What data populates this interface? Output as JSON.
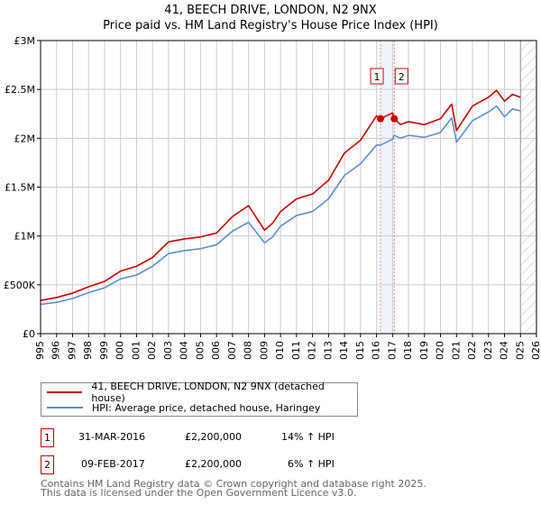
{
  "chart_data": {
    "type": "line",
    "title": "41, BEECH DRIVE, LONDON, N2 9NX",
    "subtitle": "Price paid vs. HM Land Registry's House Price Index (HPI)",
    "xlim": [
      1995,
      2026
    ],
    "ylim": [
      0,
      3000000
    ],
    "x_ticks": [
      "1995",
      "1996",
      "1997",
      "1998",
      "1999",
      "2000",
      "2001",
      "2002",
      "2003",
      "2004",
      "2005",
      "2006",
      "2007",
      "2008",
      "2009",
      "2010",
      "2011",
      "2012",
      "2013",
      "2014",
      "2015",
      "2016",
      "2017",
      "2018",
      "2019",
      "2020",
      "2021",
      "2022",
      "2023",
      "2024",
      "2025",
      "2026"
    ],
    "y_ticks": [
      {
        "v": 0,
        "label": "£0"
      },
      {
        "v": 500000,
        "label": "£500K"
      },
      {
        "v": 1000000,
        "label": "£1M"
      },
      {
        "v": 1500000,
        "label": "£1.5M"
      },
      {
        "v": 2000000,
        "label": "£2M"
      },
      {
        "v": 2500000,
        "label": "£2.5M"
      },
      {
        "v": 3000000,
        "label": "£3M"
      }
    ],
    "grid": true,
    "series": [
      {
        "name": "41, BEECH DRIVE, LONDON, N2 9NX (detached house)",
        "color": "#cc0000",
        "x": [
          1995,
          1996,
          1997,
          1998,
          1999,
          2000,
          2001,
          2002,
          2003,
          2004,
          2005,
          2006,
          2007,
          2008,
          2009,
          2009.5,
          2010,
          2011,
          2012,
          2013,
          2014,
          2015,
          2016,
          2016.25,
          2017,
          2017.1,
          2017.5,
          2018,
          2019,
          2020,
          2020.7,
          2021,
          2022,
          2023,
          2023.5,
          2024,
          2024.5,
          2025
        ],
        "y": [
          340000,
          370000,
          415000,
          480000,
          535000,
          640000,
          690000,
          780000,
          940000,
          970000,
          990000,
          1030000,
          1200000,
          1310000,
          1060000,
          1130000,
          1250000,
          1380000,
          1430000,
          1570000,
          1850000,
          1980000,
          2230000,
          2200000,
          2260000,
          2200000,
          2140000,
          2170000,
          2140000,
          2200000,
          2350000,
          2080000,
          2330000,
          2420000,
          2490000,
          2380000,
          2450000,
          2420000
        ]
      },
      {
        "name": "HPI: Average price, detached house, Haringey",
        "color": "#5b8fd0",
        "x": [
          1995,
          1996,
          1997,
          1998,
          1999,
          2000,
          2001,
          2002,
          2003,
          2004,
          2005,
          2006,
          2007,
          2008,
          2009,
          2009.5,
          2010,
          2011,
          2012,
          2013,
          2014,
          2015,
          2016,
          2016.25,
          2017,
          2017.1,
          2017.5,
          2018,
          2019,
          2020,
          2020.7,
          2021,
          2022,
          2023,
          2023.5,
          2024,
          2024.5,
          2025
        ],
        "y": [
          300000,
          320000,
          360000,
          420000,
          470000,
          560000,
          600000,
          690000,
          820000,
          850000,
          870000,
          910000,
          1050000,
          1140000,
          930000,
          990000,
          1100000,
          1210000,
          1250000,
          1380000,
          1620000,
          1740000,
          1930000,
          1930000,
          1990000,
          2030000,
          2000000,
          2030000,
          2010000,
          2060000,
          2210000,
          1960000,
          2180000,
          2270000,
          2330000,
          2220000,
          2300000,
          2280000
        ]
      }
    ],
    "sales": [
      {
        "label": "1",
        "x": 2016.25,
        "date": "31-MAR-2016",
        "price": "£2,200,000",
        "value": 2200000,
        "hpi": "14% ↑ HPI"
      },
      {
        "label": "2",
        "x": 2017.11,
        "date": "09-FEB-2017",
        "price": "£2,200,000",
        "value": 2200000,
        "hpi": "6% ↑ HPI"
      }
    ],
    "shaded_range": [
      2016.25,
      2017.11
    ],
    "forecast_hatch_from": 2025.0
  },
  "footer": {
    "line1": "Contains HM Land Registry data © Crown copyright and database right 2025.",
    "line2": "This data is licensed under the Open Government Licence v3.0."
  }
}
